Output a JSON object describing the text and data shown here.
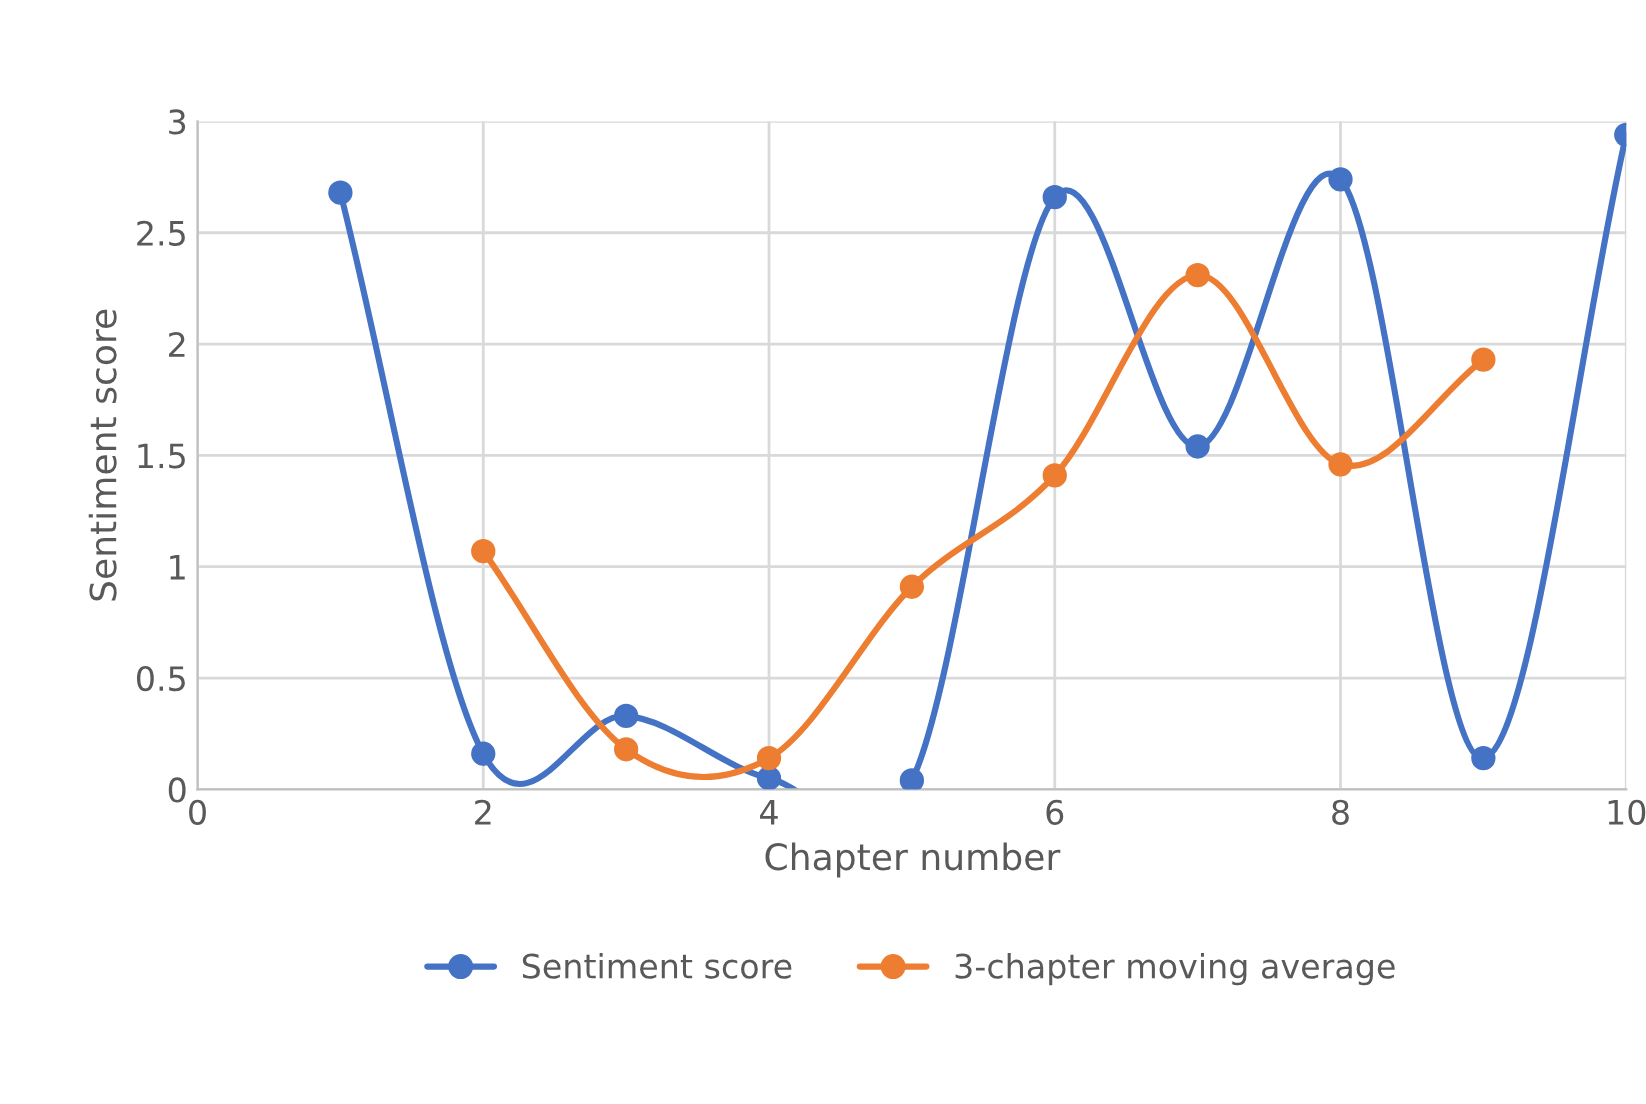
{
  "chart_data": {
    "type": "line",
    "xlabel": "Chapter number",
    "ylabel": "Sentiment score",
    "xlim": [
      0,
      10
    ],
    "xticks": [
      0,
      2,
      4,
      6,
      8,
      10
    ],
    "ylim": [
      0,
      3
    ],
    "yticks": [
      0,
      0.5,
      1,
      1.5,
      2,
      2.5,
      3
    ],
    "grid": true,
    "legend": "bottom",
    "marker": "circle",
    "line_style": "solid",
    "series": [
      {
        "name": "Sentiment score",
        "color": "#4472c4",
        "x": [
          1,
          2,
          3,
          4,
          5,
          6,
          7,
          8,
          9,
          10
        ],
        "values": [
          2.68,
          0.16,
          0.33,
          0.05,
          0.04,
          2.66,
          1.54,
          2.74,
          0.14,
          2.94
        ]
      },
      {
        "name": "3-chapter moving average",
        "color": "#ed7d31",
        "x": [
          2,
          3,
          4,
          5,
          6,
          7,
          8,
          9
        ],
        "values": [
          1.07,
          0.18,
          0.14,
          0.91,
          1.41,
          2.31,
          1.46,
          1.93
        ]
      }
    ]
  }
}
